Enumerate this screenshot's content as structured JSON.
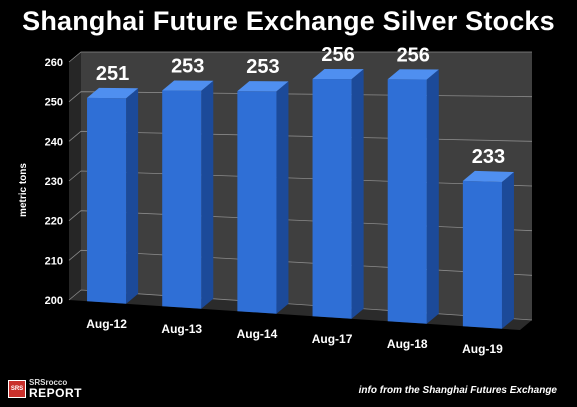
{
  "header": {
    "title": "Shanghai Future Exchange Silver Stocks"
  },
  "footer": {
    "source_note": "info from the Shanghai Futures Exchange"
  },
  "logo": {
    "box_text": "SRS",
    "line1": "SRSrocco",
    "line2": "REPORT"
  },
  "colors": {
    "bar_front": "#2f6fd6",
    "bar_side": "#1c4a99",
    "bar_top": "#4f8ff0",
    "wall": "#3f3f3f",
    "floor": "#2b2b2b",
    "logo_red": "#c9302c"
  },
  "chart_data": {
    "type": "bar",
    "title": "Shanghai Future Exchange Silver Stocks",
    "ylabel": "metric tons",
    "xlabel": "",
    "categories": [
      "Aug-12",
      "Aug-13",
      "Aug-14",
      "Aug-17",
      "Aug-18",
      "Aug-19"
    ],
    "values": [
      251,
      253,
      253,
      256,
      256,
      233
    ],
    "data_labels": [
      "251",
      "253",
      "253",
      "256",
      "256",
      "233"
    ],
    "ylim": [
      200,
      260
    ],
    "yticks": [
      200,
      210,
      220,
      230,
      240,
      250,
      260
    ],
    "grid": true,
    "legend": "none",
    "style": "3d-column"
  }
}
